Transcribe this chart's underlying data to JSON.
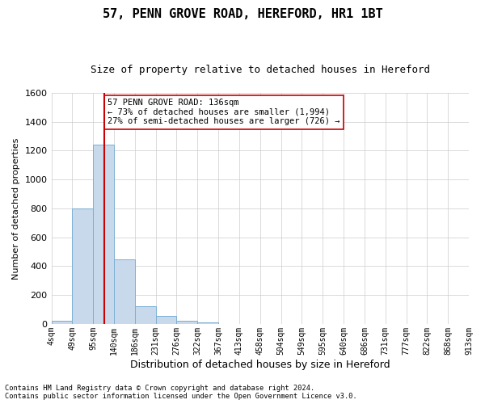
{
  "title": "57, PENN GROVE ROAD, HEREFORD, HR1 1BT",
  "subtitle": "Size of property relative to detached houses in Hereford",
  "xlabel": "Distribution of detached houses by size in Hereford",
  "ylabel": "Number of detached properties",
  "bar_color": "#c9d9ec",
  "bar_edge_color": "#7aafd4",
  "bar_heights": [
    20,
    800,
    1240,
    450,
    120,
    55,
    20,
    10,
    0,
    0,
    0,
    0,
    0,
    0,
    0,
    0,
    0,
    0,
    0,
    0
  ],
  "bin_labels": [
    "4sqm",
    "49sqm",
    "95sqm",
    "140sqm",
    "186sqm",
    "231sqm",
    "276sqm",
    "322sqm",
    "367sqm",
    "413sqm",
    "458sqm",
    "504sqm",
    "549sqm",
    "595sqm",
    "640sqm",
    "686sqm",
    "731sqm",
    "777sqm",
    "822sqm",
    "868sqm",
    "913sqm"
  ],
  "n_bins": 20,
  "vline_bin": 2.55,
  "vline_color": "#cc0000",
  "ylim": [
    0,
    1600
  ],
  "yticks": [
    0,
    200,
    400,
    600,
    800,
    1000,
    1200,
    1400,
    1600
  ],
  "annotation_text": "57 PENN GROVE ROAD: 136sqm\n← 73% of detached houses are smaller (1,994)\n27% of semi-detached houses are larger (726) →",
  "annotation_box_color": "#ffffff",
  "annotation_box_edge": "#cc0000",
  "footer_line1": "Contains HM Land Registry data © Crown copyright and database right 2024.",
  "footer_line2": "Contains public sector information licensed under the Open Government Licence v3.0.",
  "bg_color": "#ffffff",
  "grid_color": "#cccccc"
}
